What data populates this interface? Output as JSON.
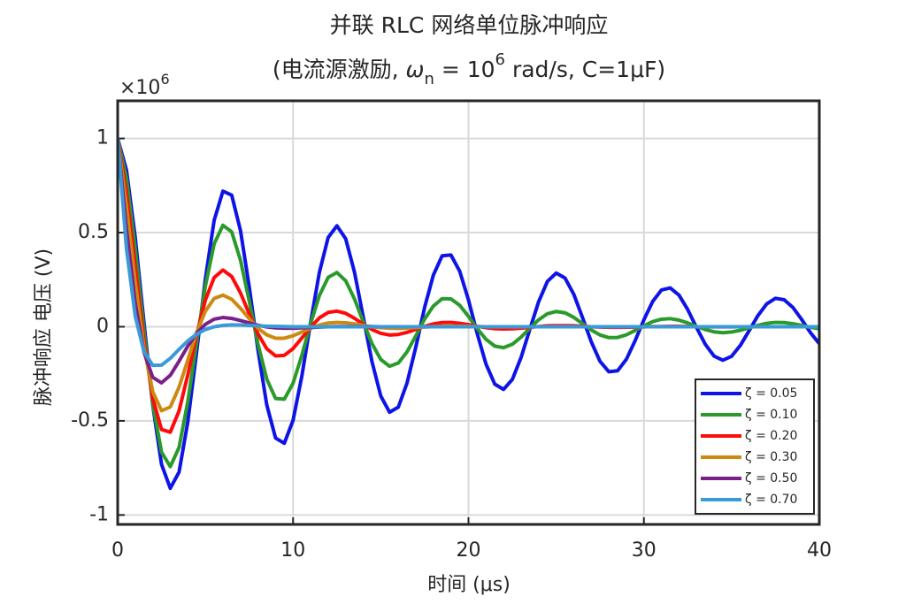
{
  "chart_data": {
    "type": "line",
    "title": "并联 RLC 网络单位脉冲响应",
    "subtitle": [
      "(电流源激励, ",
      "ω",
      "n",
      " = 10",
      "6",
      " rad/s, C=1μF)"
    ],
    "x_label": "时间 (μs)",
    "y_label": "脉冲响应 电压 (V)",
    "y_multiplier": {
      "base": "×10",
      "exponent": "6"
    },
    "xlim": [
      0,
      40
    ],
    "xticks": [
      0,
      10,
      20,
      30,
      40
    ],
    "ylim": [
      -1.05,
      1.2
    ],
    "yticks": [
      -1,
      -0.5,
      0,
      0.5,
      1
    ],
    "grid": true,
    "legend": "lower right",
    "x": [
      0,
      0.5,
      1,
      1.5,
      2,
      2.5,
      3,
      3.5,
      4,
      4.5,
      5,
      5.5,
      6,
      6.5,
      7,
      7.5,
      8,
      8.5,
      9,
      9.5,
      10,
      10.5,
      11,
      11.5,
      12,
      12.5,
      13,
      13.5,
      14,
      14.5,
      15,
      15.5,
      16,
      16.5,
      17,
      17.5,
      18,
      18.5,
      19,
      19.5,
      20,
      20.5,
      21,
      21.5,
      22,
      22.5,
      23,
      23.5,
      24,
      24.5,
      25,
      25.5,
      26,
      26.5,
      27,
      27.5,
      28,
      28.5,
      29,
      29.5,
      30,
      30.5,
      31,
      31.5,
      32,
      32.5,
      33,
      33.5,
      34,
      34.5,
      35,
      35.5,
      36,
      36.5,
      37,
      37.5,
      38,
      38.5,
      39,
      39.5,
      40
    ],
    "series": [
      {
        "name": "ζ = 0.05",
        "color": "#0f14e6",
        "values": [
          1.0,
          0.833,
          0.475,
          0.021,
          -0.416,
          -0.731,
          -0.858,
          -0.772,
          -0.504,
          -0.135,
          0.254,
          0.565,
          0.72,
          0.699,
          0.512,
          0.212,
          -0.124,
          -0.415,
          -0.591,
          -0.619,
          -0.497,
          -0.262,
          0.023,
          0.289,
          0.474,
          0.536,
          0.467,
          0.29,
          0.052,
          -0.186,
          -0.368,
          -0.454,
          -0.427,
          -0.298,
          -0.107,
          0.103,
          0.275,
          0.377,
          0.381,
          0.295,
          0.142,
          -0.037,
          -0.199,
          -0.305,
          -0.333,
          -0.28,
          -0.163,
          -0.013,
          0.133,
          0.241,
          0.285,
          0.259,
          0.173,
          0.049,
          -0.08,
          -0.184,
          -0.239,
          -0.234,
          -0.173,
          -0.074,
          0.037,
          0.134,
          0.195,
          0.206,
          0.168,
          0.091,
          -0.004,
          -0.093,
          -0.156,
          -0.178,
          -0.157,
          -0.099,
          -0.021,
          0.059,
          0.121,
          0.151,
          0.143,
          0.102,
          0.038,
          -0.032,
          -0.09
        ]
      },
      {
        "name": "ζ = 0.10",
        "color": "#2a9a2a",
        "values": [
          1.0,
          0.79,
          0.417,
          -0.019,
          -0.409,
          -0.666,
          -0.743,
          -0.641,
          -0.397,
          -0.086,
          0.216,
          0.44,
          0.539,
          0.504,
          0.354,
          0.136,
          -0.092,
          -0.278,
          -0.381,
          -0.385,
          -0.3,
          -0.152,
          0.017,
          0.166,
          0.262,
          0.288,
          0.244,
          0.148,
          0.026,
          -0.09,
          -0.174,
          -0.21,
          -0.193,
          -0.133,
          -0.048,
          0.041,
          0.11,
          0.149,
          0.148,
          0.114,
          0.055,
          -0.01,
          -0.067,
          -0.103,
          -0.111,
          -0.093,
          -0.055,
          -0.008,
          0.037,
          0.069,
          0.081,
          0.074,
          0.05,
          0.017,
          -0.017,
          -0.044,
          -0.058,
          -0.057,
          -0.043,
          -0.02,
          0.005,
          0.027,
          0.04,
          0.043,
          0.035,
          0.02,
          0.002,
          -0.015,
          -0.027,
          -0.032,
          -0.028,
          -0.019,
          -0.006,
          0.007,
          0.018,
          0.023,
          0.022,
          0.016,
          0.007,
          -0.003,
          -0.011
        ]
      },
      {
        "name": "ζ = 0.20",
        "color": "#ff0a0a",
        "values": [
          1.0,
          0.711,
          0.317,
          -0.076,
          -0.381,
          -0.546,
          -0.56,
          -0.447,
          -0.255,
          -0.042,
          0.142,
          0.261,
          0.301,
          0.267,
          0.18,
          0.068,
          -0.038,
          -0.117,
          -0.155,
          -0.152,
          -0.116,
          -0.06,
          -0.002,
          0.047,
          0.076,
          0.083,
          0.071,
          0.045,
          0.013,
          -0.015,
          -0.035,
          -0.044,
          -0.041,
          -0.03,
          -0.014,
          0.002,
          0.015,
          0.022,
          0.023,
          0.018,
          0.011,
          0.002,
          -0.005,
          -0.01,
          -0.012,
          -0.011,
          -0.008,
          -0.003,
          0.001,
          0.005,
          0.006,
          0.006,
          0.005,
          0.003,
          0.0,
          -0.002,
          -0.003,
          -0.003,
          -0.003,
          -0.002,
          -0.001,
          0.001,
          0.001,
          0.002,
          0.002,
          0.001,
          0,
          -0.001,
          -0.001,
          -0.001,
          -0.001,
          0,
          0,
          0,
          0,
          0,
          0,
          0,
          0,
          0,
          0
        ]
      },
      {
        "name": "ζ = 0.30",
        "color": "#cc8a10",
        "values": [
          1.0,
          0.64,
          0.237,
          -0.11,
          -0.345,
          -0.446,
          -0.426,
          -0.321,
          -0.176,
          -0.031,
          0.083,
          0.15,
          0.168,
          0.146,
          0.098,
          0.043,
          -0.008,
          -0.043,
          -0.061,
          -0.061,
          -0.048,
          -0.028,
          -0.008,
          0.009,
          0.02,
          0.023,
          0.021,
          0.015,
          0.007,
          0.0,
          -0.005,
          -0.008,
          -0.009,
          -0.007,
          -0.004,
          -0.002,
          0.001,
          0.003,
          0.003,
          0.003,
          0.002,
          0.001,
          0,
          -0.001,
          -0.001,
          -0.001,
          -0.001,
          0,
          0,
          0,
          0,
          0,
          0,
          0,
          0,
          0,
          0,
          0,
          0,
          0,
          0,
          0,
          0,
          0,
          0,
          0,
          0,
          0,
          0,
          0,
          0,
          0,
          0,
          0,
          0,
          0,
          0,
          0,
          0,
          0,
          0
        ]
      },
      {
        "name": "ζ = 0.50",
        "color": "#7a2088",
        "values": [
          1.0,
          0.519,
          0.126,
          -0.136,
          -0.269,
          -0.298,
          -0.258,
          -0.183,
          -0.103,
          -0.035,
          0.013,
          0.04,
          0.049,
          0.044,
          0.033,
          0.02,
          0.008,
          -0.001,
          -0.006,
          -0.008,
          -0.008,
          -0.006,
          -0.004,
          -0.002,
          0.0,
          0.001,
          0.001,
          0.001,
          0.001,
          0.001,
          0,
          0,
          0,
          0,
          0,
          0,
          0,
          0,
          0,
          0,
          0,
          0,
          0,
          0,
          0,
          0,
          0,
          0,
          0,
          0,
          0,
          0,
          0,
          0,
          0,
          0,
          0,
          0,
          0,
          0,
          0,
          0,
          0,
          0,
          0,
          0,
          0,
          0,
          0,
          0,
          0,
          0,
          0,
          0,
          0,
          0,
          0,
          0,
          0,
          0,
          0
        ]
      },
      {
        "name": "ζ = 0.70",
        "color": "#3a9ad9",
        "values": [
          1.0,
          0.417,
          0.056,
          -0.133,
          -0.205,
          -0.204,
          -0.168,
          -0.12,
          -0.075,
          -0.04,
          -0.015,
          0.0,
          0.007,
          0.01,
          0.009,
          0.007,
          0.005,
          0.003,
          0.002,
          0.001,
          0,
          0,
          0,
          0,
          0,
          0,
          0,
          0,
          0,
          0,
          0,
          0,
          0,
          0,
          0,
          0,
          0,
          0,
          0,
          0,
          0,
          0,
          0,
          0,
          0,
          0,
          0,
          0,
          0,
          0,
          0,
          0,
          0,
          0,
          0,
          0,
          0,
          0,
          0,
          0,
          0,
          0,
          0,
          0,
          0,
          0,
          0,
          0,
          0,
          0,
          0,
          0,
          0,
          0,
          0,
          0,
          0,
          0,
          0,
          0,
          0
        ]
      }
    ]
  }
}
